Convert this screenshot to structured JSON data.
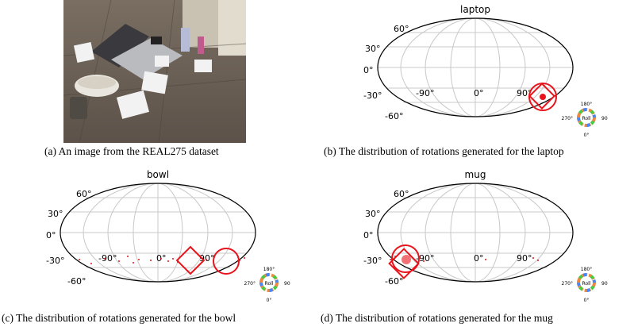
{
  "captions": {
    "a": "(a) An image from the REAL275 dataset",
    "b": "(b) The distribution of rotations generated for the laptop",
    "c": "(c) The distribution of rotations generated for the bowl",
    "d": "(d) The distribution of rotations generated for the mug"
  },
  "plots": {
    "laptop": {
      "title": "laptop",
      "lat_ticks": [
        "60°",
        "30°",
        "0°",
        "-30°",
        "-60°"
      ],
      "lon_ticks": [
        "-90°",
        "0°",
        "90°"
      ]
    },
    "bowl": {
      "title": "bowl",
      "lat_ticks": [
        "60°",
        "30°",
        "0°",
        "-30°",
        "-60°"
      ],
      "lon_ticks": [
        "-90°",
        "0°",
        "90°"
      ]
    },
    "mug": {
      "title": "mug",
      "lat_ticks": [
        "60°",
        "30°",
        "0°",
        "-30°",
        "-60°"
      ],
      "lon_ticks": [
        "-90°",
        "0°",
        "90°"
      ]
    }
  },
  "roll_wheel": {
    "center_label": "Roll",
    "top": "180°",
    "left": "270°",
    "right": "90",
    "bottom": "0°"
  },
  "colors": {
    "markers": "#e8141c",
    "grid": "#c8c8c8",
    "outline": "#000000"
  }
}
